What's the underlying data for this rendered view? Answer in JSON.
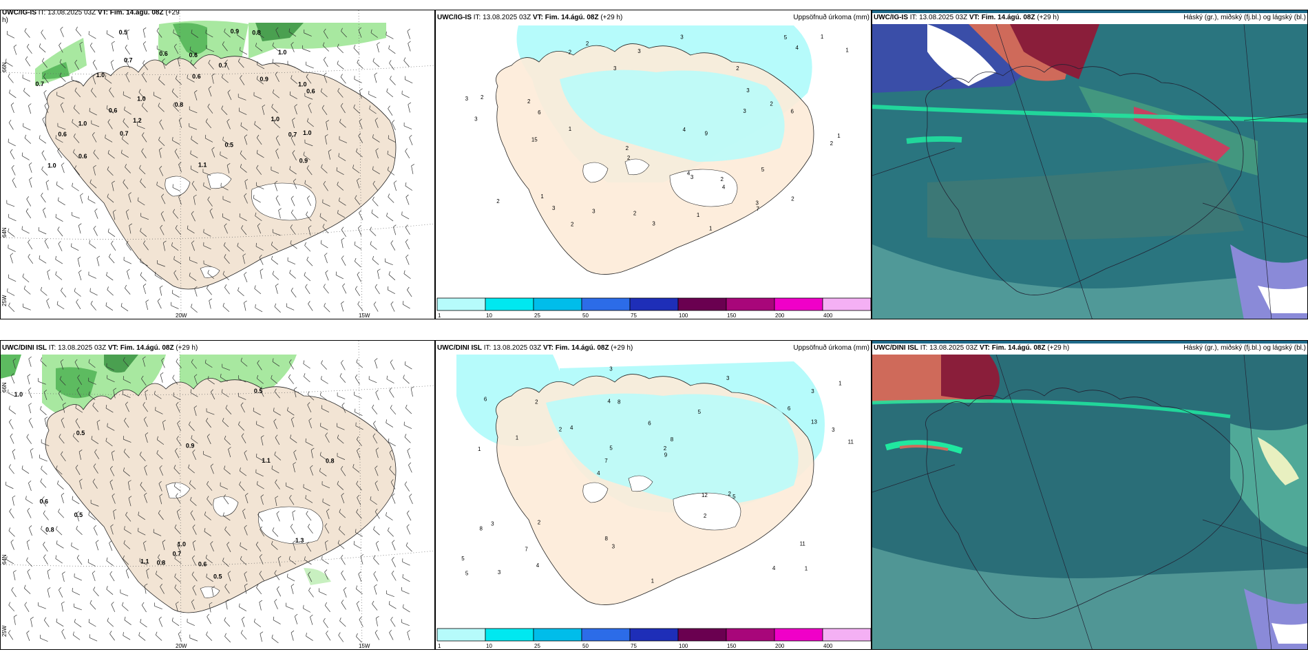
{
  "rows": [
    {
      "model": "UWC/IG-IS",
      "it_label": "IT: 13.08.2025 03Z",
      "vt_label": "VT: Fim. 14.ágú. 08Z",
      "lead": "(+29 h)",
      "left_header_wrap": "(+29",
      "left_header_wrap2": "h)"
    },
    {
      "model": "UWC/DINI ISL",
      "it_label": "IT: 13.08.2025 03Z",
      "vt_label": "VT: Fim. 14.ágú. 08Z",
      "lead": "(+29 h)"
    }
  ],
  "precip_title": "Uppsöfnuð úrkoma (mm)",
  "cloud_title": "Háský (gr.), miðský (fj.bl.) og lágský (bl.)",
  "colorbar": {
    "colors": [
      "#b6fbfb",
      "#00e8f0",
      "#00bdea",
      "#2c6ce8",
      "#1e2eb8",
      "#6a0050",
      "#a8067a",
      "#f000c8",
      "#f4b0f4"
    ],
    "ticks": [
      "1",
      "10",
      "25",
      "50",
      "75",
      "100",
      "150",
      "200",
      "400"
    ]
  },
  "axes": {
    "lon_labels": [
      "20W",
      "15W"
    ],
    "lat_labels": [
      "66N",
      "64N",
      "25W"
    ]
  },
  "top_left_values": [
    "0.7",
    "1.0",
    "0.7",
    "0.6",
    "1.0",
    "1.0",
    "1.2",
    "0.9",
    "0.7",
    "1.0",
    "1.0",
    "1.0",
    "0.9",
    "0.7",
    "0.6",
    "0.8",
    "0.6",
    "0.7",
    "0.5",
    "0.6",
    "0.9",
    "0.6",
    "0.6",
    "1.0",
    "0.6",
    "0.8",
    "1.0",
    "0.5",
    "1.1"
  ],
  "bottom_left_values": [
    "1.1",
    "1.0",
    "0.9",
    "1.0",
    "0.8",
    "0.8",
    "0.7",
    "0.6",
    "1.1",
    "0.5",
    "0.5",
    "1.3",
    "0.8",
    "0.5",
    "0.5",
    "0.6"
  ],
  "top_precip_values": [
    "1",
    "2",
    "1",
    "2",
    "2",
    "1",
    "2",
    "1",
    "2",
    "3",
    "2",
    "3",
    "2",
    "4",
    "3",
    "5",
    "3",
    "4",
    "5",
    "6",
    "3",
    "3",
    "2",
    "7",
    "9",
    "3",
    "15",
    "6",
    "3",
    "3",
    "4",
    "1",
    "2",
    "3",
    "2",
    "2",
    "3",
    "2",
    "1",
    "2",
    "3",
    "4",
    "1",
    "2"
  ],
  "bottom_precip_values": [
    "1",
    "1",
    "3",
    "4",
    "5",
    "3",
    "4",
    "6",
    "3",
    "4",
    "5",
    "7",
    "8",
    "8",
    "5",
    "6",
    "3",
    "11",
    "12",
    "13",
    "7",
    "8",
    "5",
    "2",
    "3",
    "2",
    "4",
    "11",
    "2",
    "1",
    "2",
    "1",
    "2",
    "4",
    "3",
    "2",
    "5",
    "3",
    "9",
    "8",
    "6",
    "1"
  ]
}
